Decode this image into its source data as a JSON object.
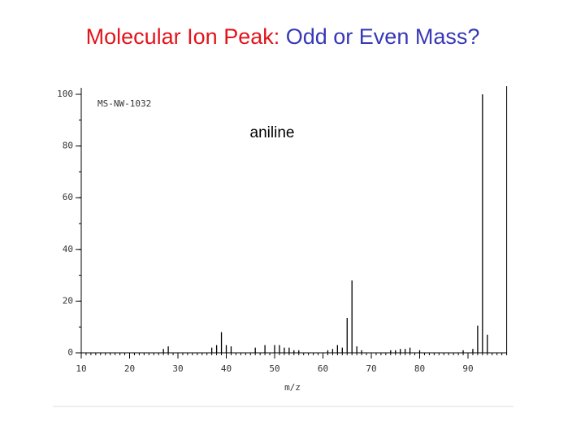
{
  "chart_data": {
    "type": "bar",
    "title": [
      "Molecular Ion Peak:",
      "Odd or Even Mass?"
    ],
    "title_colors": [
      "#e3141b",
      "#3838b8"
    ],
    "code": "MS-NW-1032",
    "annotation": "aniline",
    "xlabel": "m/z",
    "x": [
      27,
      28,
      37,
      38,
      39,
      40,
      41,
      46,
      48,
      50,
      51,
      52,
      53,
      54,
      55,
      61,
      62,
      63,
      64,
      65,
      66,
      67,
      68,
      74,
      75,
      76,
      77,
      78,
      80,
      89,
      91,
      92,
      93,
      94
    ],
    "values": [
      1.5,
      2.5,
      2,
      3,
      8,
      3,
      2.5,
      2,
      3,
      3,
      3,
      2,
      2,
      1,
      1,
      1,
      1.5,
      3,
      2,
      13.5,
      28,
      2.5,
      1,
      1,
      1,
      1.5,
      1.5,
      2,
      1,
      1,
      1.5,
      10.5,
      100,
      7
    ],
    "color": "#000000",
    "xlim": [
      10,
      98
    ],
    "ylim": [
      0,
      100
    ],
    "xticks": [
      10,
      20,
      30,
      40,
      50,
      60,
      70,
      80,
      90
    ],
    "yticks": [
      0,
      20,
      40,
      60,
      80,
      100
    ],
    "xminor_step": 1,
    "yminor_step": 10
  }
}
